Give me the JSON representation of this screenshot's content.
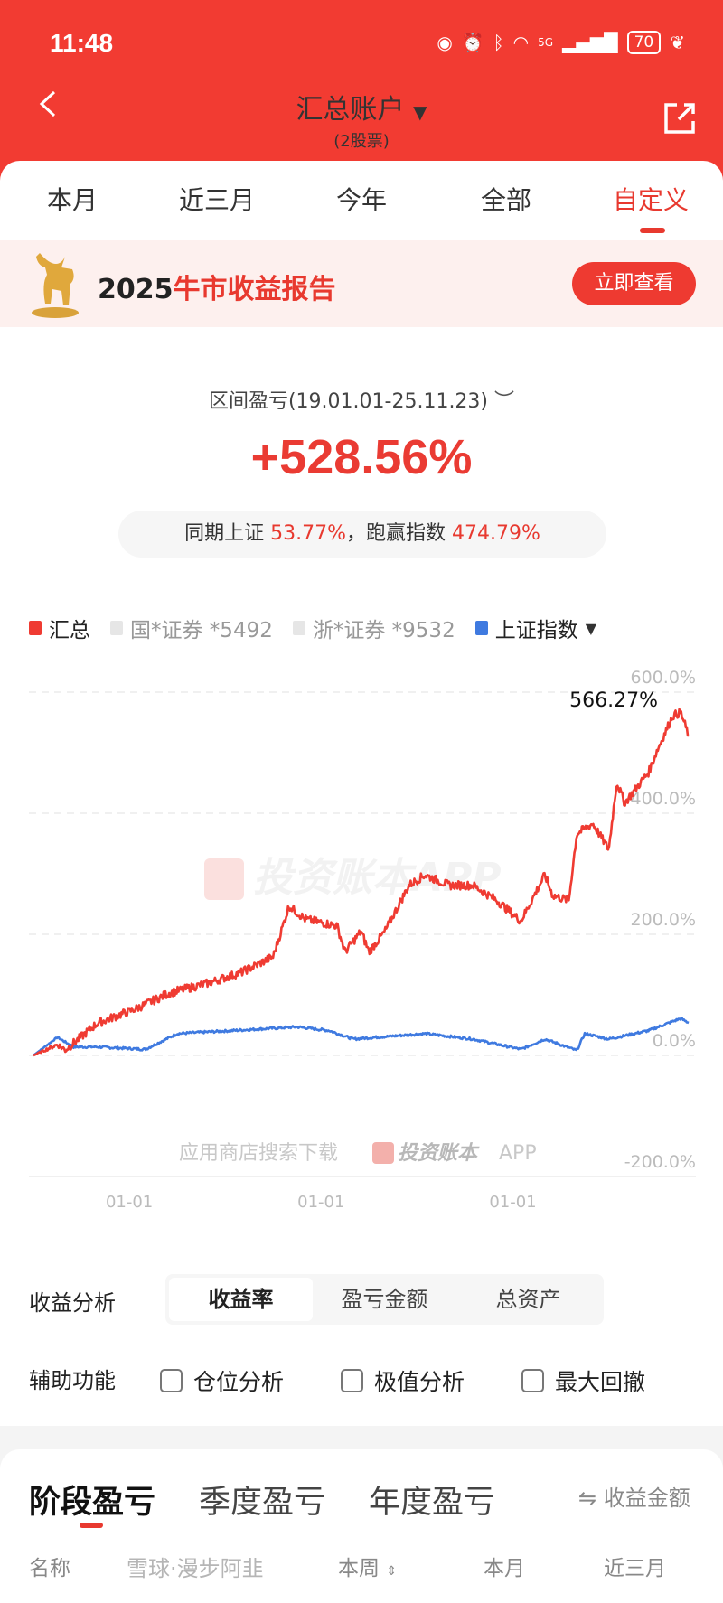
{
  "status": {
    "time": "11:48",
    "battery": "70",
    "network": "5G"
  },
  "header": {
    "title": "汇总账户",
    "subtitle": "(2股票)"
  },
  "tabs": [
    "本月",
    "近三月",
    "今年",
    "全部",
    "自定义"
  ],
  "active_tab": 4,
  "banner": {
    "year": "2025",
    "title": "牛市收益报告",
    "button": "立即查看"
  },
  "summary": {
    "range_label": "区间盈亏(19.01.01-25.11.23)",
    "total": "+528.56%",
    "index_label": "同期上证",
    "index_value": "53.77%",
    "separator": "，",
    "beat_label": "跑赢指数",
    "beat_value": "474.79%"
  },
  "legend": [
    {
      "name": "汇总",
      "color": "#ef3b32"
    },
    {
      "name": "国*证券 *5492",
      "color": "#e6e6e6"
    },
    {
      "name": "浙*证券 *9532",
      "color": "#e6e6e6"
    },
    {
      "name": "上证指数",
      "color": "#3f7ae0",
      "dropdown": "▼"
    }
  ],
  "watermark": {
    "text": "投资账本APP",
    "footer": "应用商店搜索下载",
    "footer_brand": "投资账本",
    "footer_app": "APP"
  },
  "chart_data": {
    "type": "line",
    "x_ticks": [
      "01-01",
      "01-01",
      "01-01"
    ],
    "x_tick_dates": [
      "2020-01",
      "2022-01",
      "2024-01"
    ],
    "x_range": [
      "2019-01",
      "2025-11"
    ],
    "y_ticks": [
      "600.0%",
      "400.0%",
      "200.0%",
      "0.0%",
      "-200.0%"
    ],
    "y_tick_values": [
      600,
      400,
      200,
      0,
      -200
    ],
    "ylim": [
      -200,
      600
    ],
    "grid": true,
    "max_label": "566.27%",
    "series": [
      {
        "name": "汇总",
        "color": "#ef3b32",
        "points": [
          [
            "2019-01",
            0
          ],
          [
            "2019-04",
            18
          ],
          [
            "2019-05",
            9
          ],
          [
            "2019-09",
            53
          ],
          [
            "2020-02",
            78
          ],
          [
            "2020-06",
            103
          ],
          [
            "2020-11",
            120
          ],
          [
            "2021-03",
            137
          ],
          [
            "2021-07",
            163
          ],
          [
            "2021-09",
            247
          ],
          [
            "2021-11",
            225
          ],
          [
            "2022-03",
            214
          ],
          [
            "2022-04",
            171
          ],
          [
            "2022-06",
            205
          ],
          [
            "2022-07",
            171
          ],
          [
            "2022-09",
            205
          ],
          [
            "2022-12",
            281
          ],
          [
            "2023-02",
            298
          ],
          [
            "2023-05",
            281
          ],
          [
            "2023-08",
            281
          ],
          [
            "2023-11",
            256
          ],
          [
            "2024-02",
            222
          ],
          [
            "2024-05",
            298
          ],
          [
            "2024-06",
            264
          ],
          [
            "2024-08",
            256
          ],
          [
            "2024-09",
            366
          ],
          [
            "2024-11",
            383
          ],
          [
            "2025-01",
            340
          ],
          [
            "2025-02",
            451
          ],
          [
            "2025-03",
            417
          ],
          [
            "2025-06",
            468
          ],
          [
            "2025-07",
            502
          ],
          [
            "2025-09",
            561
          ],
          [
            "2025-10",
            566.27
          ],
          [
            "2025-11",
            528.56
          ]
        ]
      },
      {
        "name": "上证指数",
        "color": "#3f7ae0",
        "points": [
          [
            "2019-01",
            0
          ],
          [
            "2019-04",
            30
          ],
          [
            "2019-06",
            14
          ],
          [
            "2019-09",
            14
          ],
          [
            "2020-03",
            10
          ],
          [
            "2020-07",
            36
          ],
          [
            "2021-02",
            41
          ],
          [
            "2021-06",
            44
          ],
          [
            "2021-10",
            47
          ],
          [
            "2022-02",
            41
          ],
          [
            "2022-05",
            27
          ],
          [
            "2022-09",
            31
          ],
          [
            "2023-02",
            36
          ],
          [
            "2023-08",
            27
          ],
          [
            "2024-02",
            10
          ],
          [
            "2024-05",
            27
          ],
          [
            "2024-09",
            8
          ],
          [
            "2024-10",
            36
          ],
          [
            "2025-01",
            27
          ],
          [
            "2025-06",
            41
          ],
          [
            "2025-10",
            61
          ],
          [
            "2025-11",
            53.77
          ]
        ]
      }
    ]
  },
  "analysis": {
    "label": "收益分析",
    "options": [
      "收益率",
      "盈亏金额",
      "总资产"
    ],
    "selected": 0
  },
  "aux": {
    "label": "辅助功能",
    "options": [
      "仓位分析",
      "极值分析",
      "最大回撤"
    ]
  },
  "period": {
    "tabs": [
      "阶段盈亏",
      "季度盈亏",
      "年度盈亏"
    ],
    "toggle_icon": "⇋",
    "toggle": "收益金额",
    "columns": [
      "名称",
      "本周",
      "本月",
      "近三月"
    ]
  },
  "page_watermark": "雪球·漫步阿韭"
}
